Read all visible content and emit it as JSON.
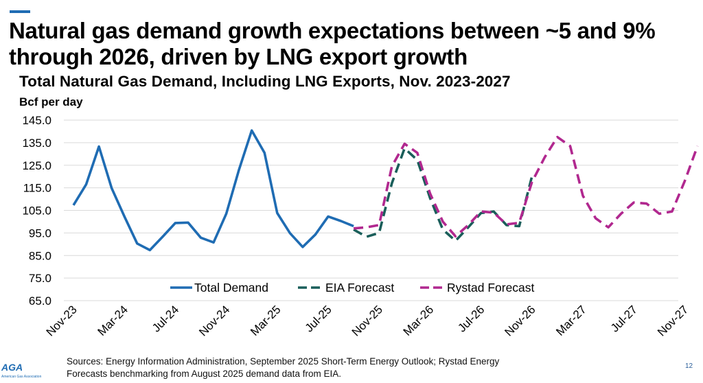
{
  "slide": {
    "title_line1": "Natural gas demand growth expectations between ~5 and 9%",
    "title_line2": "through 2026, driven by LNG export growth",
    "page_number": "12",
    "logo_text": "AGA",
    "logo_subtext": "American Gas Association"
  },
  "footer": {
    "sources_line1": "Sources: Energy Information Administration, September 2025 Short-Term Energy Outlook; Rystad Energy",
    "sources_line2": "Forecasts benchmarking from August 2025 demand data from EIA."
  },
  "colors": {
    "accent": "#1f6cb3",
    "total_demand": "#1f6cb3",
    "eia_forecast": "#1a5e5a",
    "rystad_forecast": "#b1288f",
    "gridline": "#d9d9d9"
  },
  "chart_data": {
    "type": "line",
    "title": "Total Natural Gas Demand, Including LNG Exports, Nov. 2023-2027",
    "ylabel": "Bcf per day",
    "xlabel": "",
    "ylim": [
      65,
      145
    ],
    "yticks": [
      "65.0",
      "75.0",
      "85.0",
      "95.0",
      "105.0",
      "115.0",
      "125.0",
      "135.0",
      "145.0"
    ],
    "grid": true,
    "legend_position": "bottom-inside",
    "x_tick_labels": [
      "Nov-23",
      "Mar-24",
      "Jul-24",
      "Nov-24",
      "Mar-25",
      "Jul-25",
      "Nov-25",
      "Mar-26",
      "Jul-26",
      "Nov-26",
      "Mar-27",
      "Jul-27",
      "Nov-27"
    ],
    "x": [
      "Nov-23",
      "Dec-23",
      "Jan-24",
      "Feb-24",
      "Mar-24",
      "Apr-24",
      "May-24",
      "Jun-24",
      "Jul-24",
      "Aug-24",
      "Sep-24",
      "Oct-24",
      "Nov-24",
      "Dec-24",
      "Jan-25",
      "Feb-25",
      "Mar-25",
      "Apr-25",
      "May-25",
      "Jun-25",
      "Jul-25",
      "Aug-25",
      "Sep-25",
      "Oct-25",
      "Nov-25",
      "Dec-25",
      "Jan-26",
      "Feb-26",
      "Mar-26",
      "Apr-26",
      "May-26",
      "Jun-26",
      "Jul-26",
      "Aug-26",
      "Sep-26",
      "Oct-26",
      "Nov-26",
      "Dec-26",
      "Jan-27",
      "Feb-27",
      "Mar-27",
      "Apr-27",
      "May-27",
      "Jun-27",
      "Jul-27",
      "Aug-27",
      "Sep-27",
      "Oct-27",
      "Nov-27",
      "Dec-27"
    ],
    "series": [
      {
        "name": "Total Demand",
        "style": "solid",
        "values": [
          107.3,
          116.5,
          133.3,
          114.8,
          102.3,
          90.3,
          87.4,
          93.3,
          99.4,
          99.6,
          92.9,
          90.8,
          103.5,
          123.0,
          140.4,
          130.5,
          103.8,
          94.9,
          88.8,
          94.3,
          102.3,
          100.3,
          98.0,
          null,
          null,
          null,
          null,
          null,
          null,
          null,
          null,
          null,
          null,
          null,
          null,
          null,
          null,
          null,
          null,
          null,
          null,
          null,
          null,
          null,
          null,
          null,
          null,
          null,
          null,
          null
        ]
      },
      {
        "name": "EIA Forecast",
        "style": "dashed",
        "values": [
          null,
          null,
          null,
          null,
          null,
          null,
          null,
          null,
          null,
          null,
          null,
          null,
          null,
          null,
          null,
          null,
          null,
          null,
          null,
          null,
          null,
          null,
          96.5,
          93.3,
          95.0,
          117.0,
          132.5,
          127.3,
          110.5,
          96.5,
          91.5,
          97.5,
          103.8,
          104.5,
          98.5,
          98.0,
          120.0,
          null,
          null,
          null,
          null,
          null,
          null,
          null,
          null,
          null,
          null,
          null,
          null,
          null
        ]
      },
      {
        "name": "Rystad Forecast",
        "style": "dashed",
        "values": [
          null,
          null,
          null,
          null,
          null,
          null,
          null,
          null,
          null,
          null,
          null,
          null,
          null,
          null,
          null,
          null,
          null,
          null,
          null,
          null,
          null,
          null,
          97.0,
          97.5,
          98.5,
          124.5,
          134.5,
          130.5,
          112.5,
          100.0,
          93.5,
          98.5,
          104.5,
          104.0,
          98.8,
          99.5,
          117.5,
          128.5,
          137.5,
          133.5,
          111.5,
          101.5,
          97.5,
          103.5,
          108.5,
          108.0,
          103.5,
          104.5,
          118.0,
          133.5
        ]
      }
    ]
  }
}
